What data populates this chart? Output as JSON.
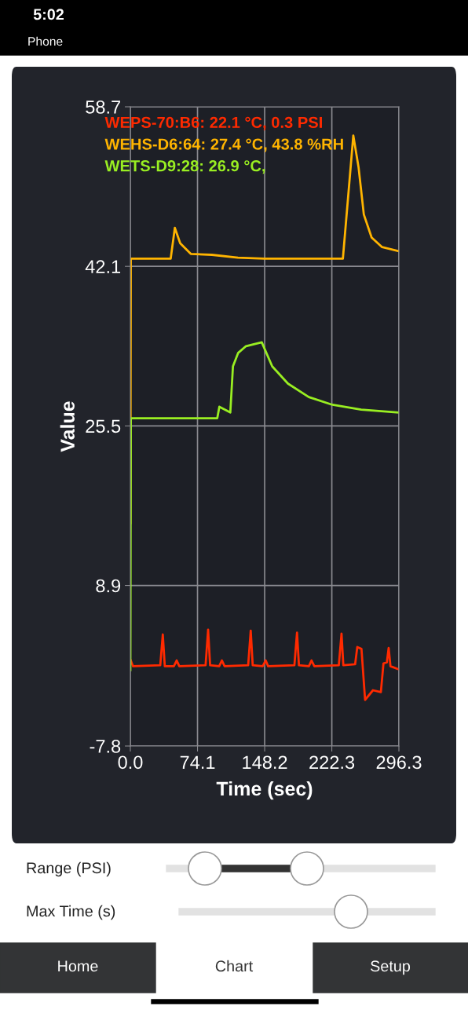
{
  "chart_data": {
    "type": "line",
    "xlabel": "Time (sec)",
    "ylabel": "Value",
    "xlim": [
      0,
      296.3
    ],
    "xticks": [
      {
        "value": 0,
        "label": "0.0"
      },
      74.1,
      148.2,
      222.3,
      296.3
    ],
    "ylim": [
      -7.8,
      58.7
    ],
    "yticks": [
      {
        "value": -7.8,
        "label": "-7.8"
      },
      8.9,
      25.5,
      42.1,
      58.7
    ],
    "grid": true,
    "series": [
      {
        "name": "WEPS-70:B6: 22.1 °C, 0.3 PSI",
        "color": "#ff2a00",
        "x": [
          0,
          3,
          33,
          35.8,
          38,
          48,
          51.1,
          54,
          83,
          85.8,
          88,
          98,
          101,
          104,
          130,
          132.8,
          135,
          146,
          149.3,
          152,
          181,
          183.9,
          186,
          197,
          199.9,
          203,
          230,
          233,
          235,
          248,
          250.4,
          255,
          259,
          267.7,
          276.4,
          279.3,
          283,
          285,
          287,
          295.2
        ],
        "values": [
          1.2,
          0.5,
          0.6,
          3.8,
          0.5,
          0.5,
          1.1,
          0.5,
          0.6,
          4.3,
          0.6,
          0.5,
          1.1,
          0.5,
          0.6,
          4.2,
          0.6,
          0.5,
          1.1,
          0.5,
          0.6,
          4.0,
          0.6,
          0.5,
          1.1,
          0.5,
          0.6,
          3.9,
          0.6,
          0.7,
          2.5,
          2.3,
          -3.0,
          -2.0,
          -2.2,
          0.8,
          0.9,
          2.4,
          0.5,
          0.2
        ]
      },
      {
        "name": "WEHS-D6:64: 27.4 °C, 43.8 %RH",
        "color": "#ffb400",
        "x": [
          0,
          0.5,
          44.5,
          49.1,
          55,
          66.7,
          90,
          118.7,
          148,
          234.5,
          246,
          251.8,
          257.6,
          266.2,
          277.8,
          295.2
        ],
        "values": [
          15.4,
          42.9,
          42.9,
          46.1,
          44.5,
          43.4,
          43.3,
          43.0,
          42.9,
          42.9,
          55.7,
          52.4,
          47.5,
          45.1,
          44.1,
          43.7
        ]
      },
      {
        "name": "WETS-D9:28: 26.9 °C,",
        "color": "#99ee22",
        "x": [
          0,
          0.5,
          95.9,
          98.2,
          110.3,
          113.2,
          119,
          127.6,
          145,
          156.5,
          173.9,
          196.9,
          223,
          254.7,
          295.2
        ],
        "values": [
          0.1,
          26.3,
          26.3,
          27.5,
          26.9,
          31.7,
          33.1,
          33.8,
          34.2,
          31.7,
          29.9,
          28.5,
          27.7,
          27.2,
          26.9
        ]
      }
    ],
    "annotations": [
      "5:02",
      "Phone",
      "Range (PSI)",
      "Max Time (s)",
      "Home",
      "Chart",
      "Setup"
    ]
  }
}
